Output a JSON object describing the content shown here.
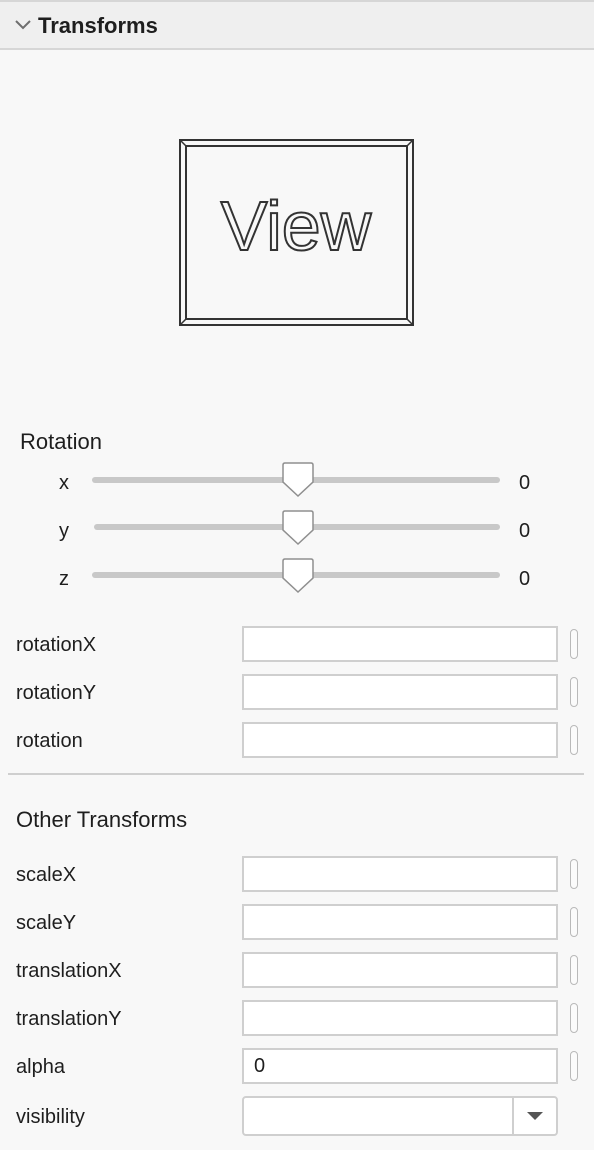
{
  "header": {
    "title": "Transforms"
  },
  "preview": {
    "text": "View"
  },
  "rotation": {
    "title": "Rotation",
    "sliders": [
      {
        "label": "x",
        "value": "0"
      },
      {
        "label": "y",
        "value": "0"
      },
      {
        "label": "z",
        "value": "0"
      }
    ]
  },
  "rotation_fields": [
    {
      "label": "rotationX",
      "value": ""
    },
    {
      "label": "rotationY",
      "value": ""
    },
    {
      "label": "rotation",
      "value": ""
    }
  ],
  "other": {
    "title": "Other Transforms",
    "fields": [
      {
        "label": "scaleX",
        "value": ""
      },
      {
        "label": "scaleY",
        "value": ""
      },
      {
        "label": "translationX",
        "value": ""
      },
      {
        "label": "translationY",
        "value": ""
      },
      {
        "label": "alpha",
        "value": "0"
      }
    ],
    "visibility": {
      "label": "visibility",
      "value": ""
    }
  },
  "colors": {
    "header_bg": "#efefef",
    "panel_bg": "#f8f8f8",
    "border": "#cfcfcf",
    "slider_track": "#c8c8c8"
  }
}
